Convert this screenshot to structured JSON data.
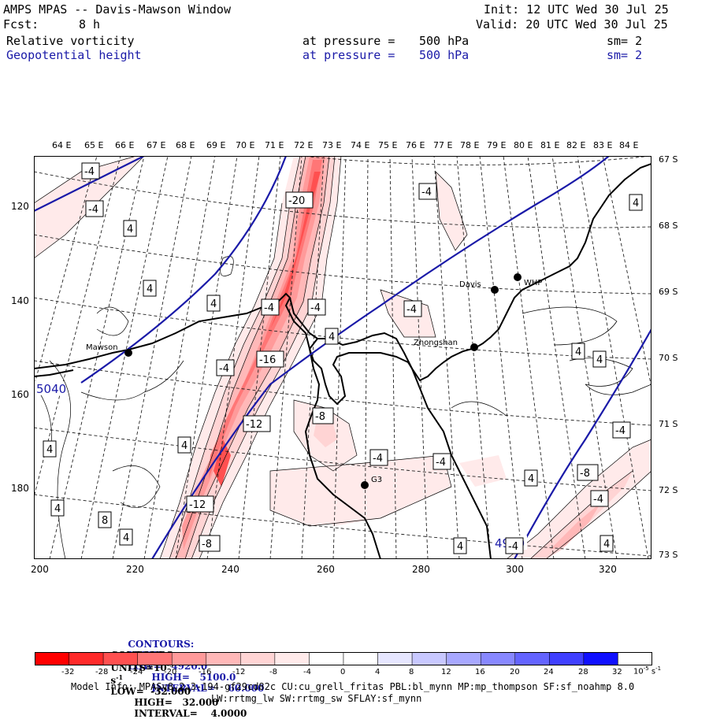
{
  "header": {
    "title": "AMPS MPAS -- Davis-Mawson Window",
    "init": "Init: 12 UTC Wed 30 Jul 25",
    "fcst_label": "Fcst:",
    "fcst_value": "8 h",
    "valid": "Valid: 20 UTC Wed 30 Jul 25",
    "field1": {
      "name": "Relative vorticity",
      "pressure_label": "at pressure =",
      "pressure_value": "500 hPa",
      "smooth": "sm= 2"
    },
    "field2": {
      "name": "Geopotential height",
      "pressure_label": "at pressure =",
      "pressure_value": "500 hPa",
      "smooth": "sm= 2"
    }
  },
  "map": {
    "top_longitudes": [
      "64 E",
      "65 E",
      "66 E",
      "67 E",
      "68 E",
      "69 E",
      "70 E",
      "71 E",
      "72 E",
      "73 E",
      "74 E",
      "75 E",
      "76 E",
      "77 E",
      "78 E",
      "79 E",
      "80 E",
      "81 E",
      "82 E",
      "83 E",
      "84 E"
    ],
    "right_latitudes": [
      "67 S",
      "68 S",
      "69 S",
      "70 S",
      "71 S",
      "72 S",
      "73 S"
    ],
    "x_ticks": [
      "200",
      "220",
      "240",
      "260",
      "280",
      "300",
      "320"
    ],
    "y_ticks": [
      "120",
      "140",
      "160",
      "180"
    ],
    "stations": [
      {
        "name": "Mawson"
      },
      {
        "name": "Davis"
      },
      {
        "name": "WHP"
      },
      {
        "name": "Zhongshan"
      },
      {
        "name": "G3"
      }
    ],
    "height_labels": [
      "5040",
      "4980"
    ],
    "vort_labels": [
      "-4",
      "-4",
      "4",
      "4",
      "4",
      "-20",
      "-4",
      "-4",
      "-4",
      "4",
      "4",
      "-4",
      "-16",
      "-4",
      "4",
      "4",
      "-4",
      "4",
      "-12",
      "4",
      "-8",
      "-12",
      "8",
      "4",
      "-8",
      "-4",
      "4",
      "-4",
      "-4",
      "-8",
      "4",
      "4",
      "4",
      "-4",
      "4"
    ]
  },
  "legend": {
    "height_contours": {
      "label": "CONTOURS:",
      "units": "UNITS=m",
      "low": "LOW=   4920.0",
      "high": "HIGH=   5100.0",
      "interval": "INTERVAL=    60.000"
    },
    "vort_contours": {
      "label": "CONTOURS:",
      "units": "UNITS=10",
      "units_exp": "-5",
      "units_tail": "s",
      "units_tail_exp": "-1",
      "low": "LOW=  -32.000",
      "high": "HIGH=   32.000",
      "interval": "INTERVAL=    4.0000"
    },
    "colorbar_ticks": [
      "-32",
      "-28",
      "-24",
      "-20",
      "-16",
      "-12",
      "-8",
      "-4",
      "0",
      "4",
      "8",
      "12",
      "16",
      "20",
      "24",
      "28",
      "32"
    ],
    "colorbar_unit": "10",
    "colorbar_unit_exp": "-5",
    "colorbar_unit_tail": "s",
    "colorbar_unit_tail_exp": "-1",
    "colors": [
      "#ff0000",
      "#ff2a2a",
      "#ff5050",
      "#ff7676",
      "#ff9a9a",
      "#ffb8b8",
      "#ffd4d4",
      "#ffeaea",
      "#ffffff",
      "#ffffff",
      "#e6e6ff",
      "#c8c8ff",
      "#a8a8ff",
      "#8888ff",
      "#6464ff",
      "#4040ff",
      "#1010ff"
    ]
  },
  "footer": {
    "line1": "Model Info: MPASv8.2.3-194-gf29cd82c CU:cu_grell_fritas PBL:bl_mynn MP:mp_thompson SF:sf_noahmp 8.0",
    "line2": "LW:rrtmg_lw SW:rrtmg_sw SFLAY:sf_mynn"
  }
}
